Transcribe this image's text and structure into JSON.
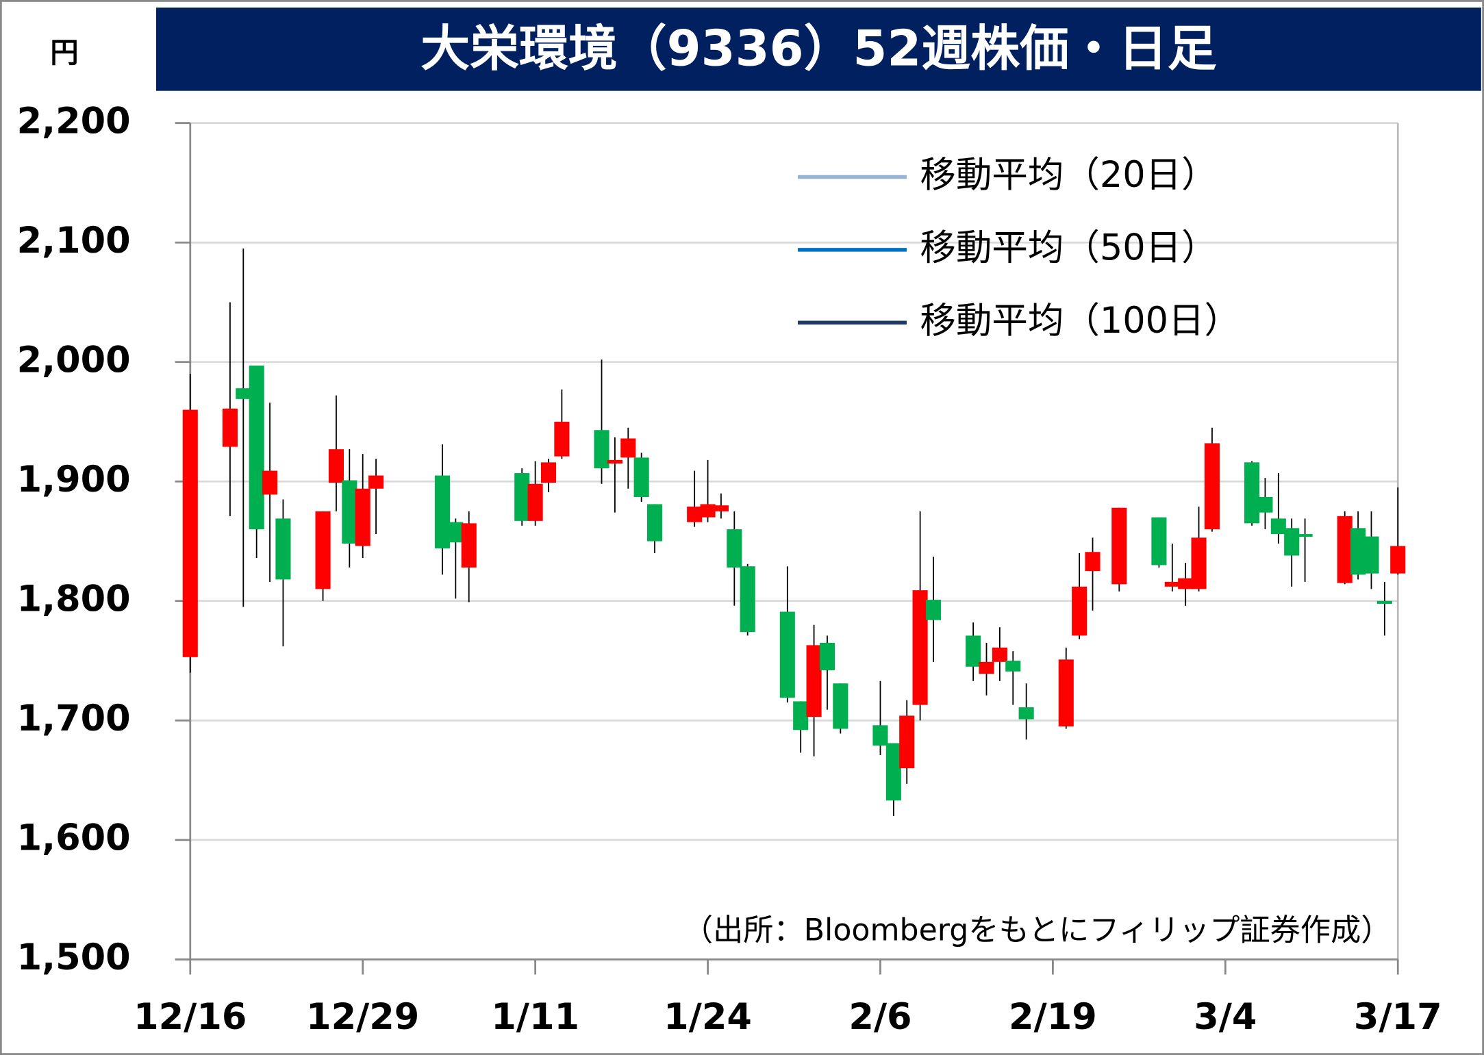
{
  "chart_data": {
    "type": "candlestick",
    "title": "大栄環境（9336）52週株価・日足",
    "y_unit": "円",
    "source": "（出所：Bloombergをもとにフィリップ証券作成）",
    "up_color": "#ff0000",
    "down_color": "#00b050",
    "moving_averages": [
      {
        "name": "移動平均（20日）",
        "color": "#95b3d7"
      },
      {
        "name": "移動平均（50日）",
        "color": "#0070c0"
      },
      {
        "name": "移動平均（100日）",
        "color": "#1f3864"
      }
    ],
    "xlim": [
      "12/16",
      "3/17"
    ],
    "xticks": [
      "12/16",
      "12/29",
      "1/11",
      "1/24",
      "2/6",
      "2/19",
      "3/4",
      "3/17"
    ],
    "ylim": [
      1500,
      2200
    ],
    "yticks": [
      {
        "value": 1500,
        "label": "1,500"
      },
      {
        "value": 1600,
        "label": "1,600"
      },
      {
        "value": 1700,
        "label": "1,700"
      },
      {
        "value": 1800,
        "label": "1,800"
      },
      {
        "value": 1900,
        "label": "1,900"
      },
      {
        "value": 2000,
        "label": "2,000"
      },
      {
        "value": 2100,
        "label": "2,100"
      },
      {
        "value": 2200,
        "label": "2,200"
      }
    ],
    "grid": true,
    "x": [
      "12/16",
      "12/19",
      "12/20",
      "12/21",
      "12/22",
      "12/23",
      "12/26",
      "12/27",
      "12/28",
      "12/29",
      "12/30",
      "1/4",
      "1/5",
      "1/6",
      "1/10",
      "1/11",
      "1/12",
      "1/13",
      "1/16",
      "1/17",
      "1/18",
      "1/19",
      "1/20",
      "1/23",
      "1/24",
      "1/25",
      "1/26",
      "1/27",
      "1/30",
      "1/31",
      "2/1",
      "2/2",
      "2/3",
      "2/6",
      "2/7",
      "2/8",
      "2/9",
      "2/10",
      "2/13",
      "2/14",
      "2/15",
      "2/16",
      "2/17",
      "2/20",
      "2/21",
      "2/22",
      "2/24",
      "2/27",
      "2/28",
      "3/1",
      "3/2",
      "3/3",
      "3/6",
      "3/7",
      "3/8",
      "3/9",
      "3/10",
      "3/13",
      "3/14",
      "3/15",
      "3/16",
      "3/17"
    ],
    "open": [
      1753,
      1929,
      1978,
      1997,
      1889,
      1869,
      1810,
      1899,
      1901,
      1846,
      1894,
      1905,
      1866,
      1828,
      1907,
      1867,
      1899,
      1921,
      1943,
      1915,
      1920,
      1920,
      1881,
      1866,
      1870,
      1875,
      1860,
      1829,
      1791,
      1716,
      1703,
      1765,
      1731,
      1696,
      1681,
      1660,
      1713,
      1801,
      1771,
      1739,
      1749,
      1750,
      1711,
      1695,
      1771,
      1825,
      1814,
      1870,
      1812,
      1810,
      1810,
      1860,
      1916,
      1887,
      1869,
      1861,
      1856,
      1815,
      1861,
      1854,
      1800,
      1823
    ],
    "high": [
      1990,
      2050,
      2095,
      1997,
      1966,
      1885,
      1875,
      1972,
      1927,
      1923,
      1919,
      1931,
      1869,
      1875,
      1911,
      1917,
      1919,
      1977,
      2002,
      1937,
      1945,
      1924,
      1881,
      1909,
      1918,
      1890,
      1875,
      1831,
      1829,
      1716,
      1780,
      1771,
      1731,
      1733,
      1681,
      1717,
      1875,
      1837,
      1782,
      1765,
      1778,
      1758,
      1731,
      1761,
      1840,
      1853,
      1878,
      1870,
      1848,
      1832,
      1879,
      1945,
      1917,
      1903,
      1907,
      1869,
      1869,
      1875,
      1875,
      1875,
      1816,
      1895
    ],
    "low": [
      1740,
      1871,
      1795,
      1836,
      1816,
      1762,
      1800,
      1875,
      1828,
      1836,
      1856,
      1822,
      1802,
      1799,
      1863,
      1863,
      1891,
      1919,
      1898,
      1874,
      1894,
      1883,
      1840,
      1862,
      1866,
      1869,
      1796,
      1771,
      1715,
      1673,
      1670,
      1709,
      1689,
      1671,
      1620,
      1647,
      1700,
      1749,
      1733,
      1721,
      1733,
      1713,
      1684,
      1693,
      1768,
      1792,
      1808,
      1828,
      1808,
      1796,
      1808,
      1858,
      1863,
      1860,
      1848,
      1812,
      1816,
      1814,
      1818,
      1810,
      1771,
      1822
    ],
    "close": [
      1960,
      1961,
      1969,
      1860,
      1909,
      1818,
      1875,
      1927,
      1848,
      1894,
      1905,
      1844,
      1849,
      1865,
      1867,
      1898,
      1916,
      1950,
      1911,
      1918,
      1936,
      1887,
      1850,
      1879,
      1881,
      1880,
      1828,
      1774,
      1719,
      1692,
      1763,
      1742,
      1693,
      1679,
      1633,
      1704,
      1809,
      1784,
      1745,
      1749,
      1761,
      1741,
      1701,
      1751,
      1812,
      1841,
      1878,
      1830,
      1816,
      1819,
      1853,
      1932,
      1865,
      1874,
      1856,
      1838,
      1854,
      1871,
      1822,
      1823,
      1798,
      1846
    ]
  }
}
